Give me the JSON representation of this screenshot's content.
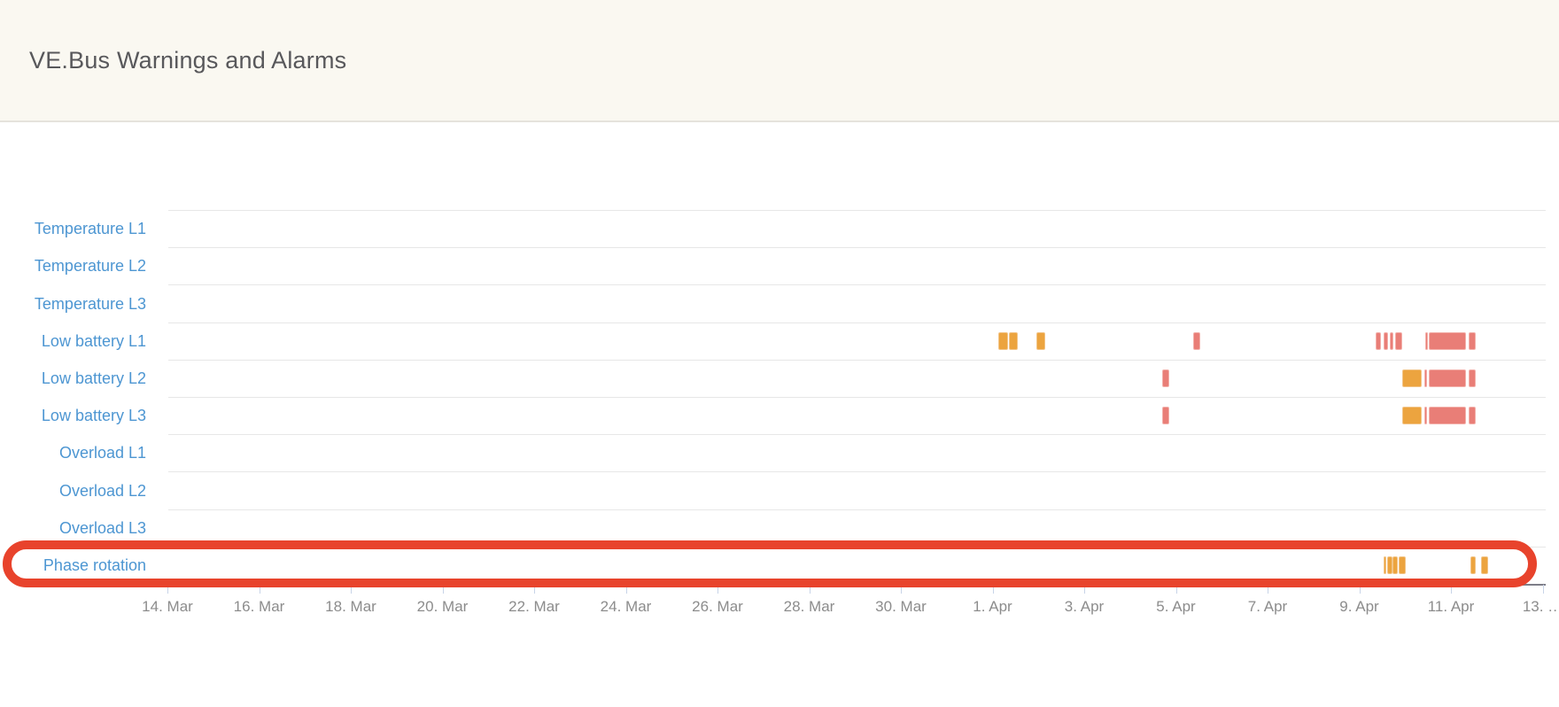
{
  "header": {
    "title": "VE.Bus Warnings and Alarms"
  },
  "chart_data": {
    "type": "gantt",
    "title": "VE.Bus Warnings and Alarms",
    "rows": [
      "Temperature L1",
      "Temperature L2",
      "Temperature L3",
      "Low battery L1",
      "Low battery L2",
      "Low battery L3",
      "Overload L1",
      "Overload L2",
      "Overload L3",
      "Phase rotation"
    ],
    "x_axis": {
      "unit": "days since 14. Mar 00:00",
      "range_days": [
        0,
        30.1
      ],
      "tick_step_days": 2,
      "ticks": [
        {
          "day": 0,
          "label": "14. Mar"
        },
        {
          "day": 2,
          "label": "16. Mar"
        },
        {
          "day": 4,
          "label": "18. Mar"
        },
        {
          "day": 6,
          "label": "20. Mar"
        },
        {
          "day": 8,
          "label": "22. Mar"
        },
        {
          "day": 10,
          "label": "24. Mar"
        },
        {
          "day": 12,
          "label": "26. Mar"
        },
        {
          "day": 14,
          "label": "28. Mar"
        },
        {
          "day": 16,
          "label": "30. Mar"
        },
        {
          "day": 18,
          "label": "1. Apr"
        },
        {
          "day": 20,
          "label": "3. Apr"
        },
        {
          "day": 22,
          "label": "5. Apr"
        },
        {
          "day": 24,
          "label": "7. Apr"
        },
        {
          "day": 26,
          "label": "9. Apr"
        },
        {
          "day": 28,
          "label": "11. Apr"
        },
        {
          "day": 30,
          "label": "13. …"
        }
      ]
    },
    "severity_colors": {
      "warning": "#ECA43F",
      "alarm": "#E97E77"
    },
    "bars": [
      {
        "row": "Low battery L1",
        "severity": "warning",
        "start_day": 18.13,
        "end_day": 18.33
      },
      {
        "row": "Low battery L1",
        "severity": "warning",
        "start_day": 18.36,
        "end_day": 18.56
      },
      {
        "row": "Low battery L1",
        "severity": "warning",
        "start_day": 18.96,
        "end_day": 19.15
      },
      {
        "row": "Low battery L1",
        "severity": "alarm",
        "start_day": 22.37,
        "end_day": 22.53
      },
      {
        "row": "Low battery L1",
        "severity": "alarm",
        "start_day": 26.36,
        "end_day": 26.48
      },
      {
        "row": "Low battery L1",
        "severity": "alarm",
        "start_day": 26.53,
        "end_day": 26.62
      },
      {
        "row": "Low battery L1",
        "severity": "alarm",
        "start_day": 26.66,
        "end_day": 26.75
      },
      {
        "row": "Low battery L1",
        "severity": "alarm",
        "start_day": 26.79,
        "end_day": 26.94
      },
      {
        "row": "Low battery L1",
        "severity": "alarm",
        "start_day": 27.43,
        "end_day": 27.49
      },
      {
        "row": "Low battery L1",
        "severity": "alarm",
        "start_day": 27.52,
        "end_day": 28.33
      },
      {
        "row": "Low battery L1",
        "severity": "alarm",
        "start_day": 28.39,
        "end_day": 28.55
      },
      {
        "row": "Low battery L2",
        "severity": "alarm",
        "start_day": 21.7,
        "end_day": 21.86
      },
      {
        "row": "Low battery L2",
        "severity": "warning",
        "start_day": 26.94,
        "end_day": 27.36
      },
      {
        "row": "Low battery L2",
        "severity": "alarm",
        "start_day": 27.42,
        "end_day": 27.48
      },
      {
        "row": "Low battery L2",
        "severity": "alarm",
        "start_day": 27.52,
        "end_day": 28.33
      },
      {
        "row": "Low battery L2",
        "severity": "alarm",
        "start_day": 28.39,
        "end_day": 28.55
      },
      {
        "row": "Low battery L3",
        "severity": "alarm",
        "start_day": 21.7,
        "end_day": 21.86
      },
      {
        "row": "Low battery L3",
        "severity": "warning",
        "start_day": 26.94,
        "end_day": 27.36
      },
      {
        "row": "Low battery L3",
        "severity": "alarm",
        "start_day": 27.42,
        "end_day": 27.48
      },
      {
        "row": "Low battery L3",
        "severity": "alarm",
        "start_day": 27.52,
        "end_day": 28.33
      },
      {
        "row": "Low battery L3",
        "severity": "alarm",
        "start_day": 28.39,
        "end_day": 28.55
      },
      {
        "row": "Phase rotation",
        "severity": "warning",
        "start_day": 26.53,
        "end_day": 26.58
      },
      {
        "row": "Phase rotation",
        "severity": "warning",
        "start_day": 26.6,
        "end_day": 26.72
      },
      {
        "row": "Phase rotation",
        "severity": "warning",
        "start_day": 26.73,
        "end_day": 26.85
      },
      {
        "row": "Phase rotation",
        "severity": "warning",
        "start_day": 26.86,
        "end_day": 27.02
      },
      {
        "row": "Phase rotation",
        "severity": "warning",
        "start_day": 28.42,
        "end_day": 28.55
      },
      {
        "row": "Phase rotation",
        "severity": "warning",
        "start_day": 28.65,
        "end_day": 28.81
      }
    ],
    "annotation": {
      "kind": "hand-drawn rounded rectangle outline",
      "color": "#E8432C",
      "highlights_row": "Phase rotation"
    },
    "layout_hints": {
      "grid": "horizontal row separators only",
      "legend": "none",
      "row_label_color": "#4D96D2"
    }
  }
}
